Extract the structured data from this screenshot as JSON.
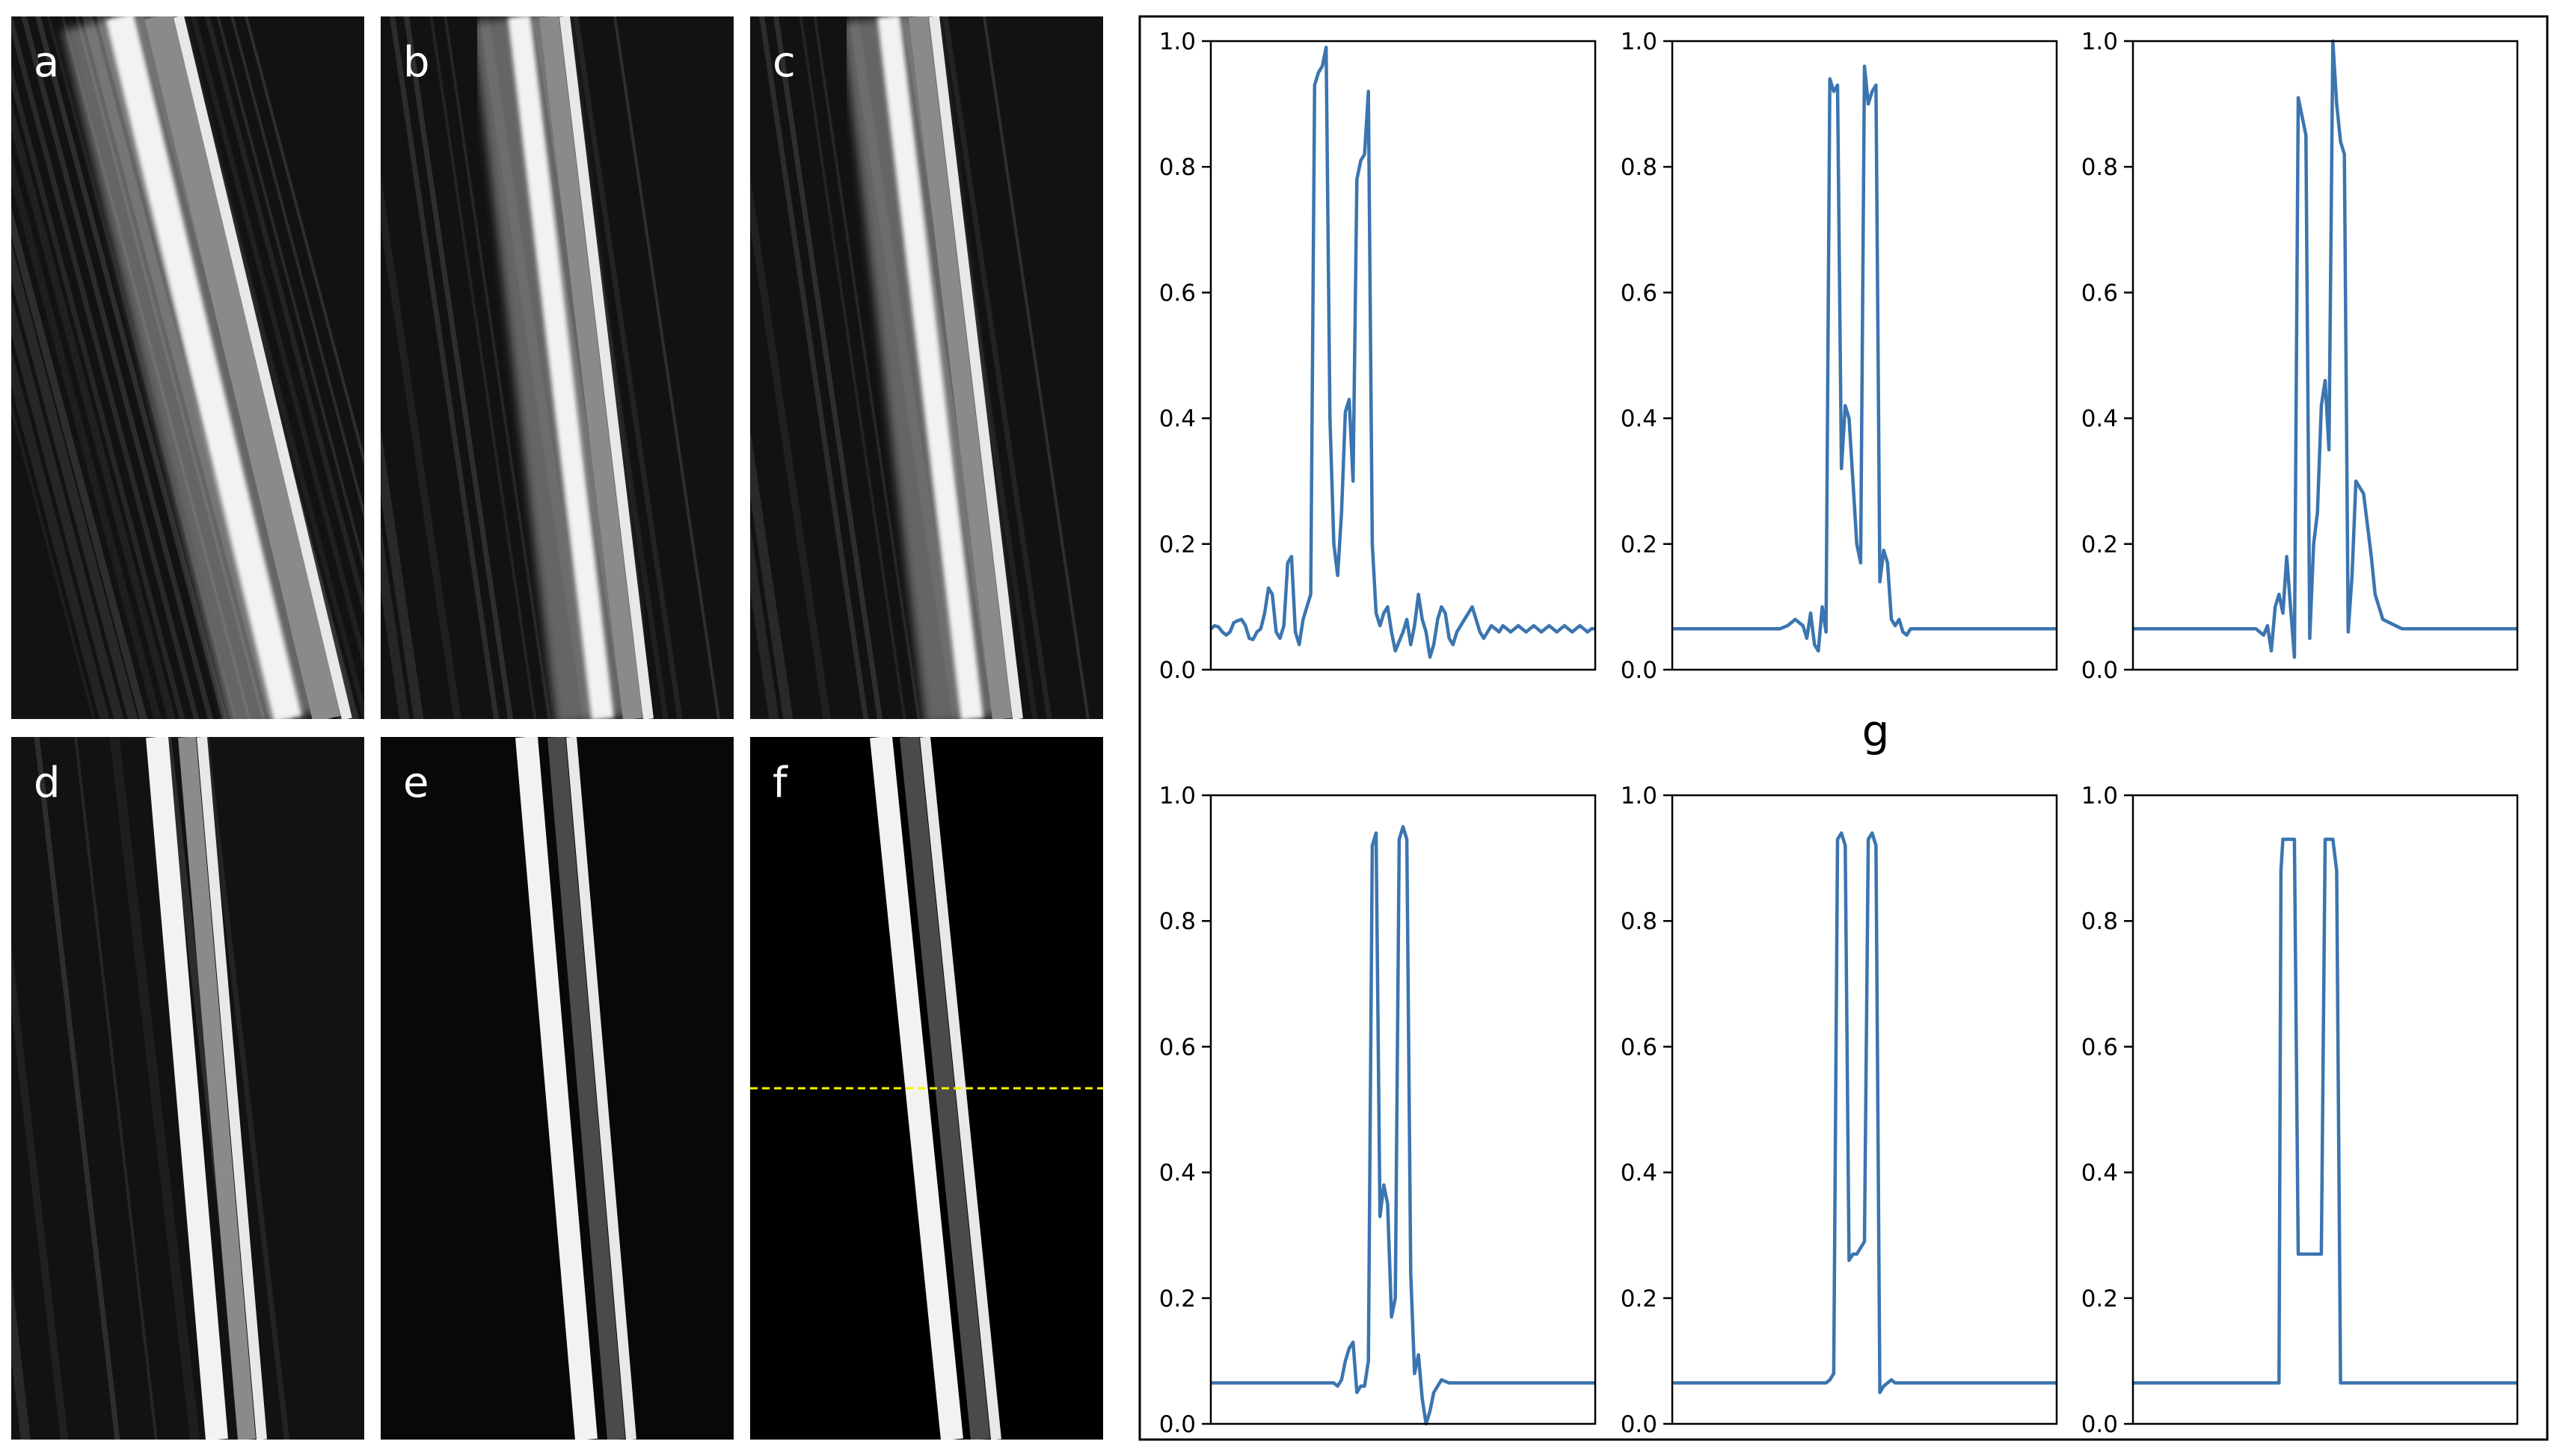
{
  "panels": [
    {
      "label": "a",
      "variant": "streaky-noisy"
    },
    {
      "label": "b",
      "variant": "mild-streaks"
    },
    {
      "label": "c",
      "variant": "mild-streaks"
    },
    {
      "label": "d",
      "variant": "faint-streaks"
    },
    {
      "label": "e",
      "variant": "clean"
    },
    {
      "label": "f",
      "variant": "ground-truth-with-profile-line"
    }
  ],
  "profile_line": {
    "color": "#f5f500",
    "style": "dashed",
    "shown_in_panel": "f"
  },
  "figure_label": "g",
  "colors": {
    "line": "#3b75af",
    "panel_bg": "#121212",
    "axes": "#000000"
  },
  "chart_data": [
    {
      "type": "line",
      "panel": "g-1",
      "ylim": [
        0,
        1
      ],
      "yticks": [
        "0.0",
        "0.2",
        "0.4",
        "0.6",
        "0.8",
        "1.0"
      ],
      "x": [
        0,
        0.01,
        0.02,
        0.03,
        0.04,
        0.05,
        0.06,
        0.07,
        0.08,
        0.09,
        0.1,
        0.11,
        0.12,
        0.13,
        0.14,
        0.15,
        0.16,
        0.17,
        0.18,
        0.19,
        0.2,
        0.21,
        0.22,
        0.23,
        0.24,
        0.25,
        0.26,
        0.27,
        0.28,
        0.29,
        0.3,
        0.31,
        0.32,
        0.33,
        0.34,
        0.35,
        0.36,
        0.37,
        0.38,
        0.39,
        0.4,
        0.41,
        0.42,
        0.43,
        0.44,
        0.45,
        0.46,
        0.47,
        0.48,
        0.5,
        0.51,
        0.52,
        0.53,
        0.54,
        0.55,
        0.56,
        0.57,
        0.58,
        0.59,
        0.6,
        0.61,
        0.62,
        0.63,
        0.64,
        0.65,
        0.66,
        0.67,
        0.68,
        0.69,
        0.7,
        0.71,
        0.72,
        0.73,
        0.74,
        0.75,
        0.76,
        0.77,
        0.78,
        0.79,
        0.8,
        0.81,
        0.82,
        0.83,
        0.84,
        0.85,
        0.86,
        0.87,
        0.88,
        0.89,
        0.9,
        0.91,
        0.92,
        0.93,
        0.94,
        0.95,
        0.96,
        0.97,
        0.98,
        0.99,
        1
      ],
      "y": [
        0.065,
        0.07,
        0.068,
        0.06,
        0.055,
        0.06,
        0.075,
        0.078,
        0.08,
        0.07,
        0.05,
        0.048,
        0.06,
        0.065,
        0.09,
        0.13,
        0.12,
        0.06,
        0.05,
        0.07,
        0.17,
        0.18,
        0.06,
        0.04,
        0.08,
        0.1,
        0.12,
        0.93,
        0.95,
        0.96,
        0.99,
        0.4,
        0.2,
        0.15,
        0.25,
        0.41,
        0.43,
        0.3,
        0.78,
        0.81,
        0.82,
        0.92,
        0.2,
        0.09,
        0.07,
        0.09,
        0.1,
        0.06,
        0.03,
        0.06,
        0.08,
        0.04,
        0.07,
        0.12,
        0.08,
        0.06,
        0.02,
        0.04,
        0.08,
        0.1,
        0.09,
        0.05,
        0.04,
        0.06,
        0.07,
        0.08,
        0.09,
        0.1,
        0.08,
        0.06,
        0.05,
        0.06,
        0.07,
        0.065,
        0.06,
        0.07,
        0.065,
        0.06,
        0.065,
        0.07,
        0.065,
        0.06,
        0.065,
        0.07,
        0.065,
        0.06,
        0.065,
        0.07,
        0.065,
        0.06,
        0.065,
        0.07,
        0.065,
        0.06,
        0.065,
        0.07,
        0.065,
        0.06,
        0.065,
        0.065
      ]
    },
    {
      "type": "line",
      "panel": "g-2",
      "ylim": [
        0,
        1
      ],
      "yticks": [
        "0.0",
        "0.2",
        "0.4",
        "0.6",
        "0.8",
        "1.0"
      ],
      "x": [
        0,
        0.2,
        0.22,
        0.24,
        0.26,
        0.28,
        0.3,
        0.32,
        0.34,
        0.35,
        0.36,
        0.37,
        0.38,
        0.39,
        0.4,
        0.41,
        0.42,
        0.43,
        0.44,
        0.45,
        0.46,
        0.47,
        0.48,
        0.49,
        0.5,
        0.51,
        0.52,
        0.53,
        0.54,
        0.55,
        0.56,
        0.57,
        0.58,
        0.59,
        0.6,
        0.61,
        0.62,
        0.63,
        0.64,
        0.65,
        0.66,
        0.67,
        0.68,
        0.7,
        1
      ],
      "y": [
        0.065,
        0.065,
        0.065,
        0.065,
        0.065,
        0.065,
        0.07,
        0.08,
        0.07,
        0.05,
        0.09,
        0.04,
        0.03,
        0.1,
        0.06,
        0.94,
        0.92,
        0.93,
        0.32,
        0.42,
        0.4,
        0.3,
        0.2,
        0.17,
        0.96,
        0.9,
        0.92,
        0.93,
        0.14,
        0.19,
        0.17,
        0.08,
        0.07,
        0.08,
        0.06,
        0.055,
        0.065,
        0.065,
        0.065,
        0.065,
        0.065,
        0.065,
        0.065,
        0.065,
        0.065
      ]
    },
    {
      "type": "line",
      "panel": "g-3",
      "ylim": [
        0,
        1
      ],
      "yticks": [
        "0.0",
        "0.2",
        "0.4",
        "0.6",
        "0.8",
        "1.0"
      ],
      "x": [
        0,
        0.25,
        0.27,
        0.29,
        0.31,
        0.32,
        0.33,
        0.34,
        0.35,
        0.36,
        0.37,
        0.38,
        0.39,
        0.4,
        0.41,
        0.42,
        0.43,
        0.44,
        0.45,
        0.46,
        0.47,
        0.48,
        0.49,
        0.5,
        0.51,
        0.52,
        0.53,
        0.54,
        0.55,
        0.56,
        0.57,
        0.58,
        0.6,
        0.62,
        0.63,
        0.65,
        0.7,
        1
      ],
      "y": [
        0.065,
        0.065,
        0.065,
        0.065,
        0.065,
        0.065,
        0.06,
        0.055,
        0.07,
        0.03,
        0.1,
        0.12,
        0.09,
        0.18,
        0.1,
        0.02,
        0.91,
        0.88,
        0.85,
        0.05,
        0.2,
        0.25,
        0.42,
        0.46,
        0.35,
        1.0,
        0.9,
        0.84,
        0.82,
        0.06,
        0.15,
        0.3,
        0.28,
        0.18,
        0.12,
        0.08,
        0.065,
        0.065
      ]
    },
    {
      "type": "line",
      "panel": "g-4",
      "ylim": [
        0,
        1
      ],
      "yticks": [
        "0.0",
        "0.2",
        "0.4",
        "0.6",
        "0.8",
        "1.0"
      ],
      "x": [
        0,
        0.2,
        0.3,
        0.32,
        0.33,
        0.34,
        0.35,
        0.36,
        0.37,
        0.38,
        0.39,
        0.4,
        0.41,
        0.42,
        0.43,
        0.44,
        0.45,
        0.46,
        0.47,
        0.48,
        0.49,
        0.5,
        0.51,
        0.52,
        0.53,
        0.54,
        0.55,
        0.56,
        0.57,
        0.58,
        0.59,
        0.6,
        0.62,
        0.65,
        0.7,
        1
      ],
      "y": [
        0.065,
        0.065,
        0.065,
        0.065,
        0.06,
        0.07,
        0.1,
        0.12,
        0.13,
        0.05,
        0.06,
        0.06,
        0.1,
        0.92,
        0.94,
        0.33,
        0.38,
        0.35,
        0.17,
        0.2,
        0.93,
        0.95,
        0.93,
        0.24,
        0.08,
        0.11,
        0.04,
        0.0,
        0.02,
        0.05,
        0.06,
        0.07,
        0.065,
        0.065,
        0.065,
        0.065
      ]
    },
    {
      "type": "line",
      "panel": "g-5",
      "ylim": [
        0,
        1
      ],
      "yticks": [
        "0.0",
        "0.2",
        "0.4",
        "0.6",
        "0.8",
        "1.0"
      ],
      "x": [
        0,
        0.35,
        0.4,
        0.41,
        0.42,
        0.43,
        0.44,
        0.45,
        0.46,
        0.47,
        0.48,
        0.49,
        0.5,
        0.51,
        0.52,
        0.53,
        0.54,
        0.55,
        0.56,
        0.57,
        0.58,
        0.6,
        0.62,
        0.65,
        1
      ],
      "y": [
        0.065,
        0.065,
        0.065,
        0.07,
        0.08,
        0.93,
        0.94,
        0.92,
        0.26,
        0.27,
        0.27,
        0.28,
        0.29,
        0.93,
        0.94,
        0.92,
        0.05,
        0.06,
        0.065,
        0.07,
        0.065,
        0.065,
        0.065,
        0.065,
        0.065
      ]
    },
    {
      "type": "line",
      "panel": "g-6",
      "ylim": [
        0,
        1
      ],
      "yticks": [
        "0.0",
        "0.2",
        "0.4",
        "0.6",
        "0.8",
        "1.0"
      ],
      "x": [
        0,
        0.38,
        0.385,
        0.39,
        0.42,
        0.43,
        0.44,
        0.48,
        0.49,
        0.5,
        0.52,
        0.53,
        0.54,
        0.55,
        1
      ],
      "y": [
        0.065,
        0.065,
        0.88,
        0.93,
        0.93,
        0.27,
        0.27,
        0.27,
        0.27,
        0.93,
        0.93,
        0.88,
        0.065,
        0.065,
        0.065
      ]
    }
  ]
}
